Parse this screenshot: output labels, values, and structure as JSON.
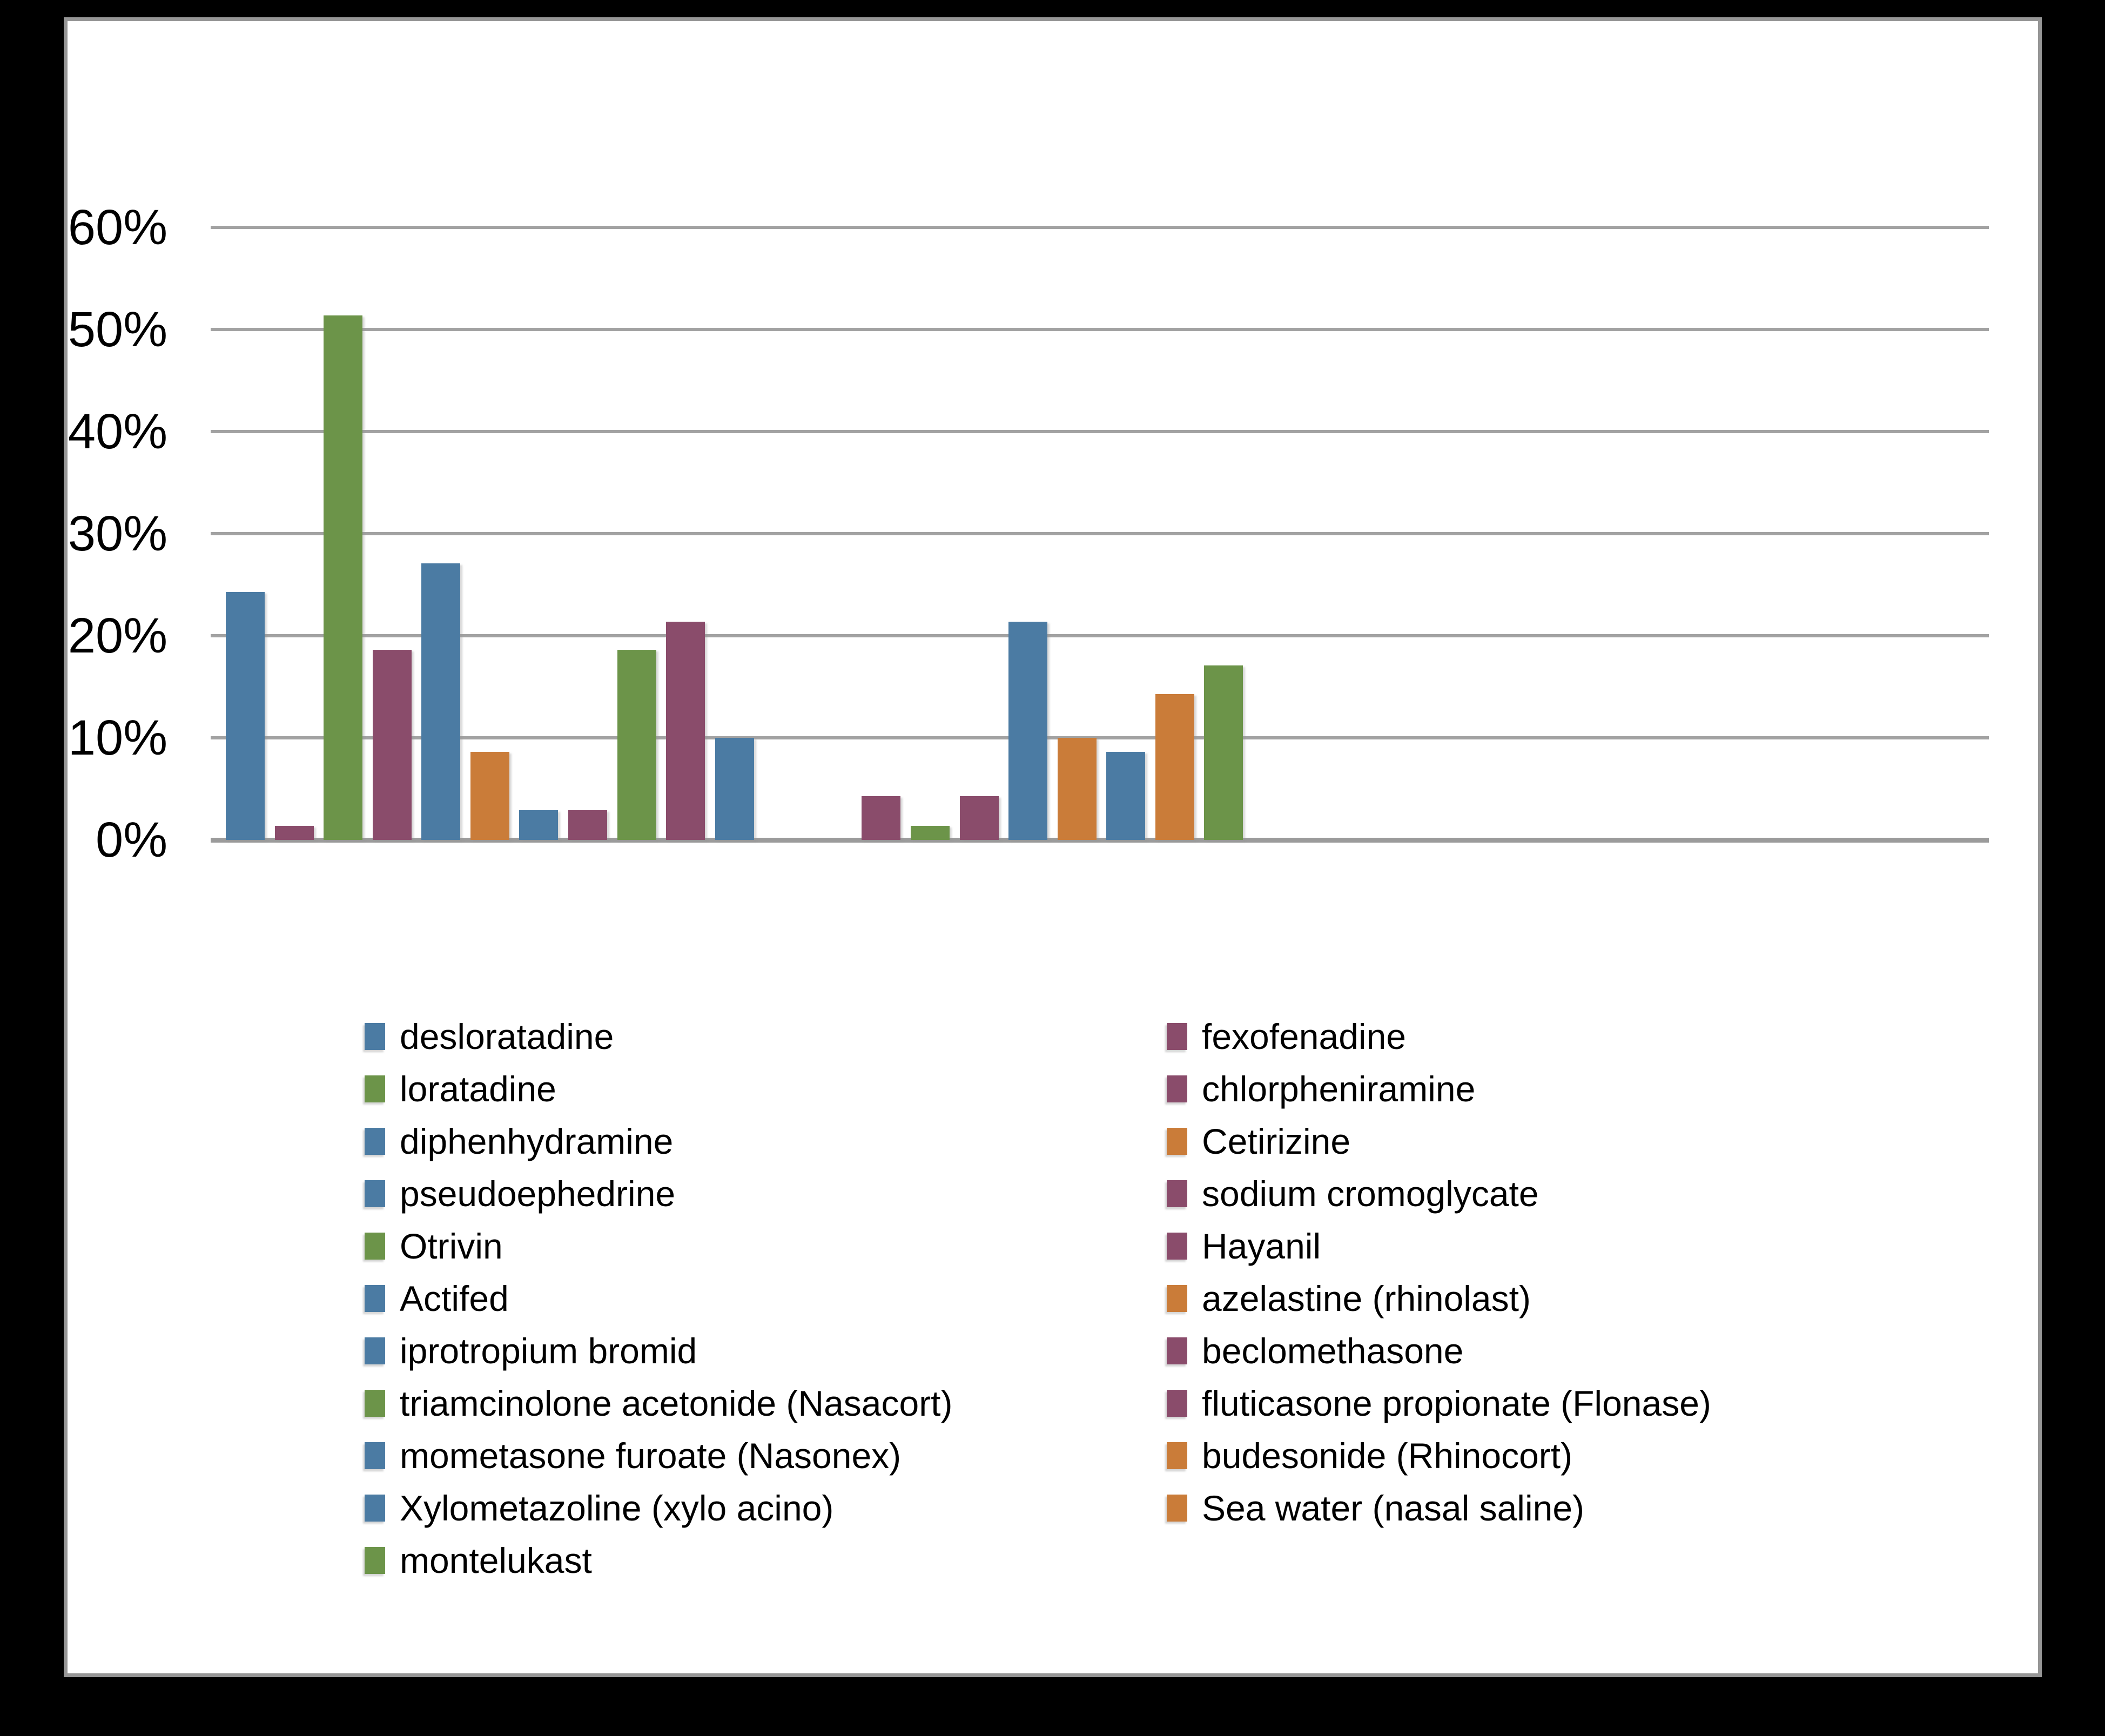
{
  "window": {
    "frame_color": "#000000",
    "panel_background": "#ffffff",
    "panel_border_color": "#969696"
  },
  "chart_data": {
    "type": "bar",
    "title": "",
    "xlabel": "",
    "ylabel": "",
    "ylim": [
      0,
      60
    ],
    "ytick_labels": [
      "0%",
      "10%",
      "20%",
      "30%",
      "40%",
      "50%",
      "60%"
    ],
    "grid": true,
    "gridline_color": "#a2a2a2",
    "legend_position": "bottom, two columns, entries flow row-wise",
    "palette": {
      "blue": "#4B7BA3",
      "purple": "#8A4C6B",
      "green": "#6C9449",
      "orange": "#CA7C39"
    },
    "series": [
      {
        "name": "desloratadine",
        "color": "blue",
        "value": 24.3
      },
      {
        "name": "fexofenadine",
        "color": "purple",
        "value": 1.4
      },
      {
        "name": "loratadine",
        "color": "green",
        "value": 51.4
      },
      {
        "name": "chlorpheniramine",
        "color": "purple",
        "value": 18.6
      },
      {
        "name": "diphenhydramine",
        "color": "blue",
        "value": 27.1
      },
      {
        "name": "Cetirizine",
        "color": "orange",
        "value": 8.6
      },
      {
        "name": "pseudoephedrine",
        "color": "blue",
        "value": 2.9
      },
      {
        "name": "sodium cromoglycate",
        "color": "purple",
        "value": 2.9
      },
      {
        "name": "Otrivin",
        "color": "green",
        "value": 18.6
      },
      {
        "name": "Hayanil",
        "color": "purple",
        "value": 21.4
      },
      {
        "name": "Actifed",
        "color": "blue",
        "value": 10
      },
      {
        "name": "azelastine (rhinolast)",
        "color": "orange",
        "value": 0
      },
      {
        "name": "iprotropium bromid",
        "color": "blue",
        "value": 0
      },
      {
        "name": "beclomethasone",
        "color": "purple",
        "value": 4.3
      },
      {
        "name": "triamcinolone acetonide (Nasacort)",
        "color": "green",
        "value": 1.4
      },
      {
        "name": "fluticasone propionate (Flonase)",
        "color": "purple",
        "value": 4.3
      },
      {
        "name": "mometasone furoate (Nasonex)",
        "color": "blue",
        "value": 21.4
      },
      {
        "name": "budesonide (Rhinocort)",
        "color": "orange",
        "value": 10
      },
      {
        "name": "Xylometazoline (xylo acino)",
        "color": "blue",
        "value": 8.6
      },
      {
        "name": "Sea water (nasal saline)",
        "color": "orange",
        "value": 14.3
      },
      {
        "name": "montelukast",
        "color": "green",
        "value": 17.1
      }
    ]
  }
}
